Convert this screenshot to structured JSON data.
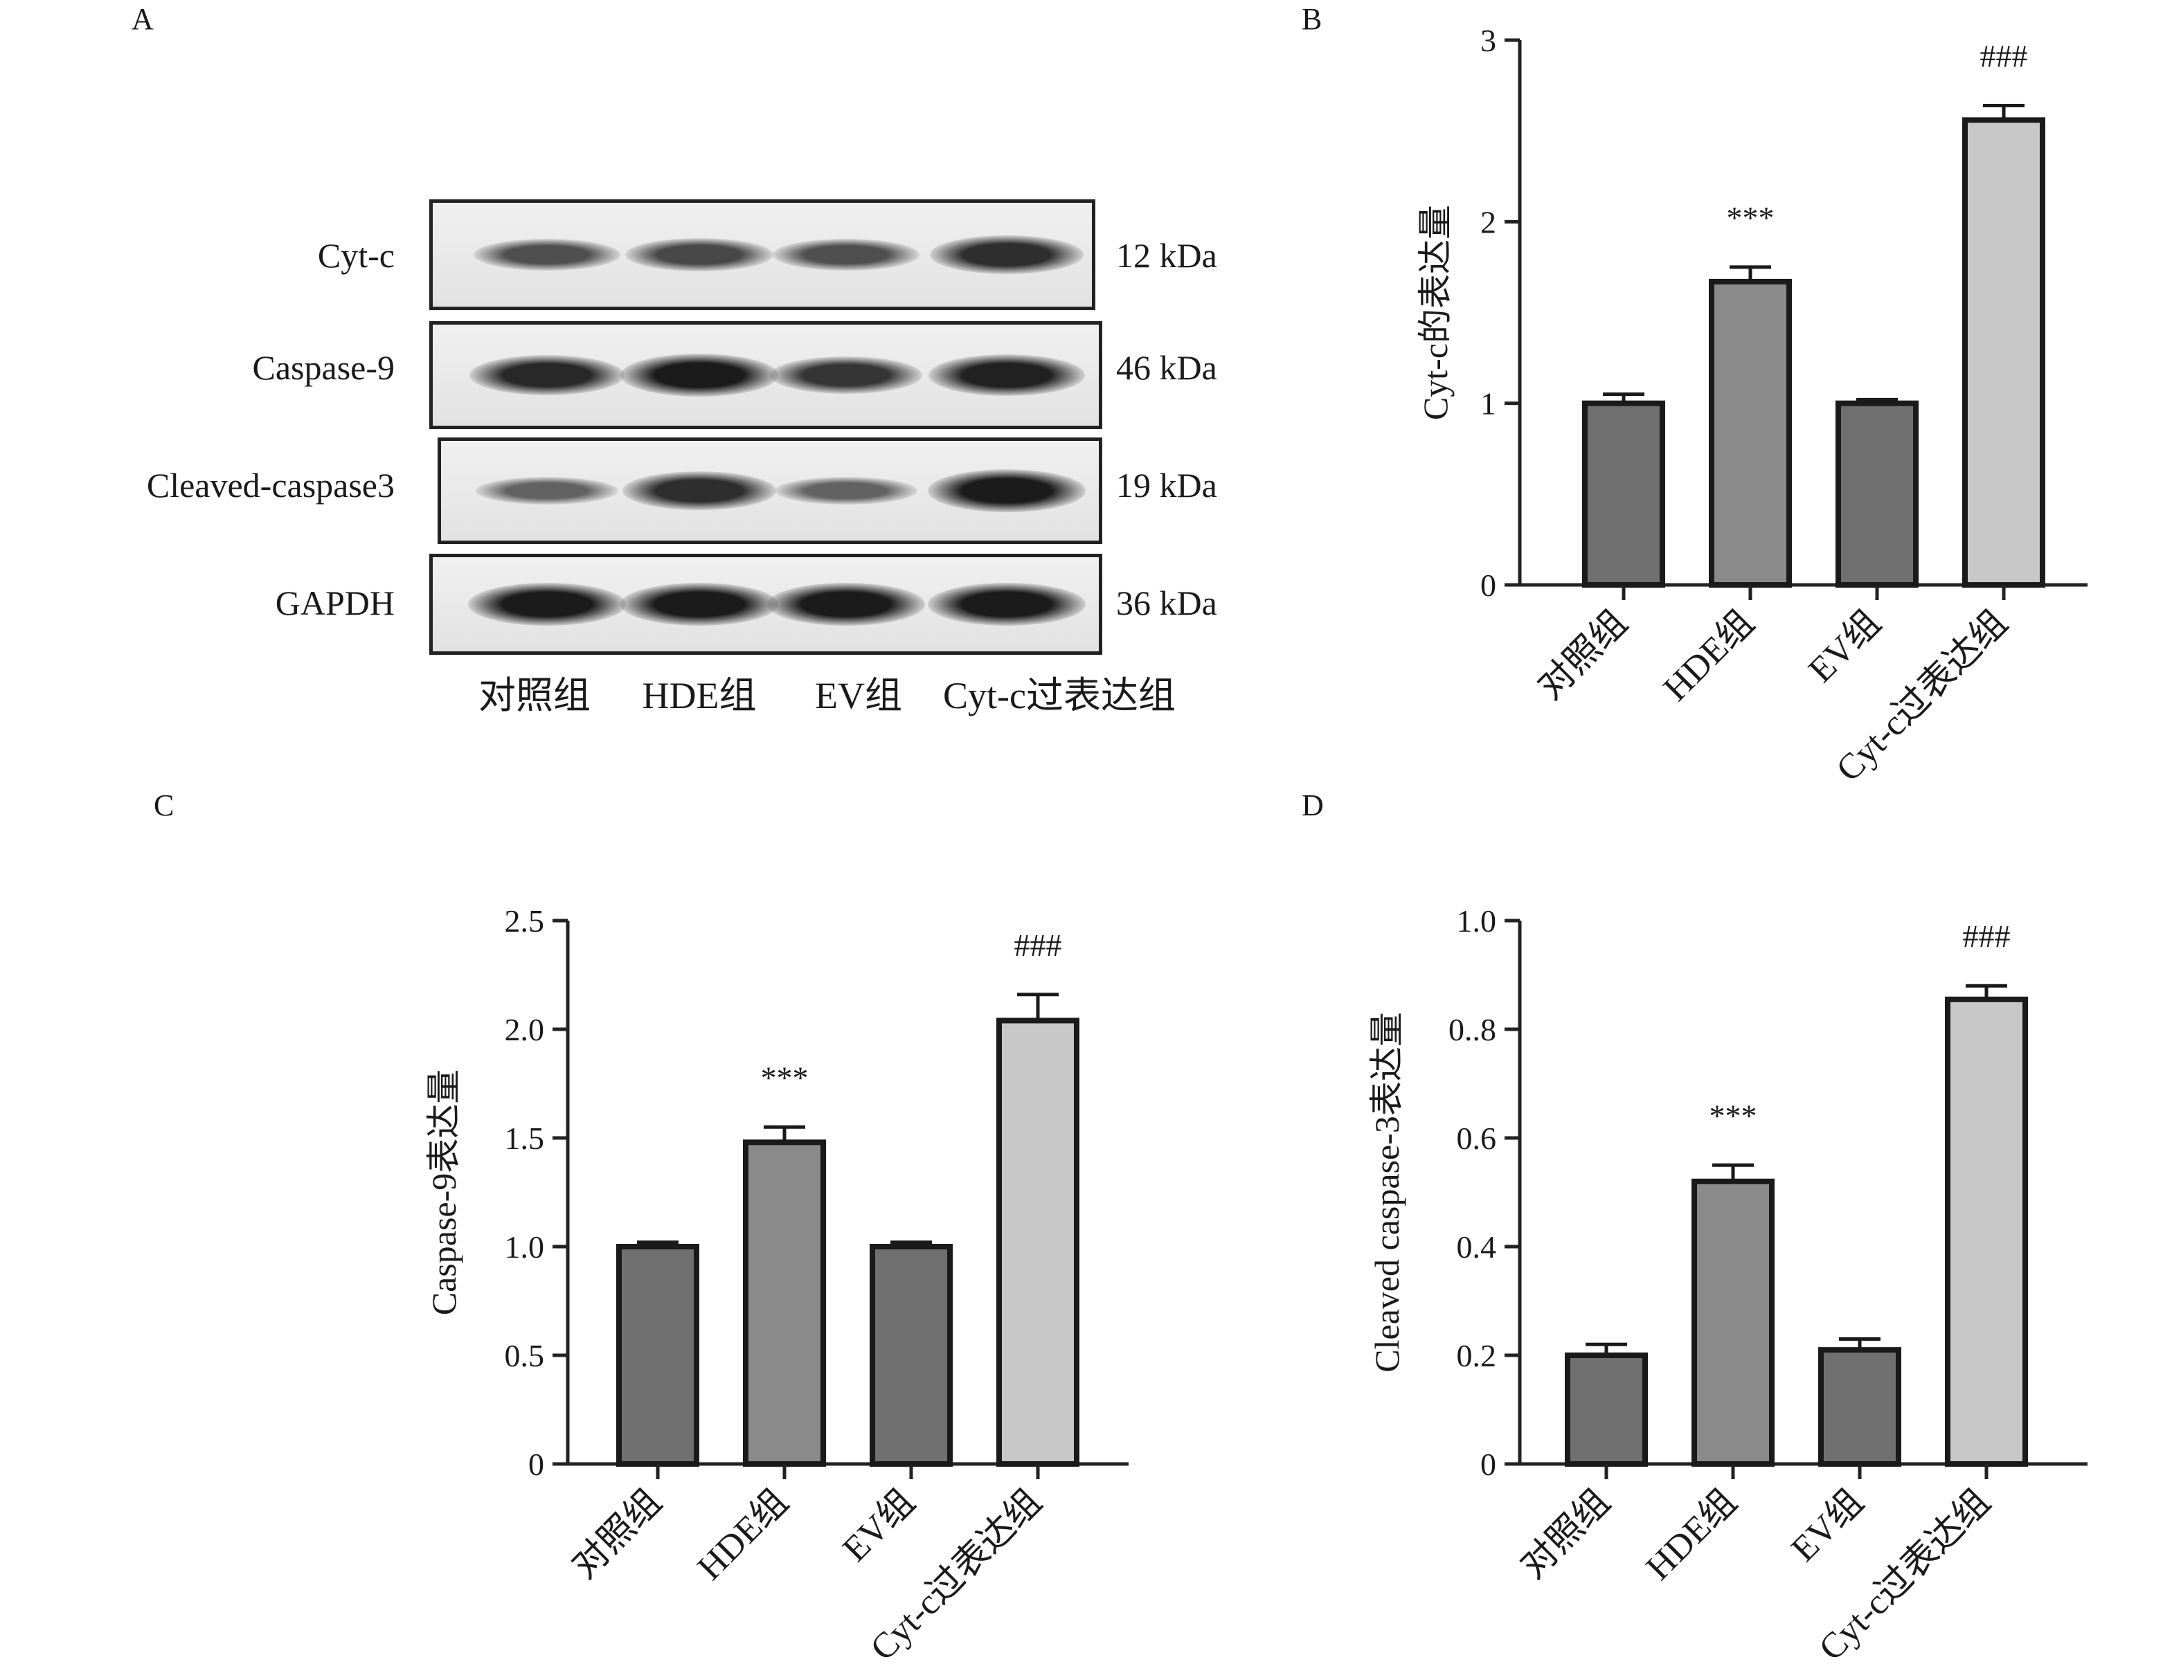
{
  "panel_letters": [
    "A",
    "B",
    "C",
    "D"
  ],
  "blot": {
    "proteins": [
      {
        "name": "Cyt-c",
        "kda": "12 kDa",
        "intensities": [
          0.55,
          0.6,
          0.55,
          0.8
        ]
      },
      {
        "name": "Caspase-9",
        "kda": "46 kDa",
        "intensities": [
          0.85,
          0.95,
          0.75,
          0.9
        ]
      },
      {
        "name": "Cleaved-caspase3",
        "kda": "19 kDa",
        "intensities": [
          0.4,
          0.8,
          0.4,
          0.95
        ]
      },
      {
        "name": "GAPDH",
        "kda": "36 kDa",
        "intensities": [
          0.95,
          0.95,
          0.95,
          0.95
        ]
      }
    ],
    "lanes": [
      "对照组",
      "HDE组",
      "EV组",
      "Cyt-c过表达组"
    ]
  },
  "chart_data": [
    {
      "panel": "B",
      "type": "bar",
      "categories": [
        "对照组",
        "HDE组",
        "EV组",
        "Cyt-c过表达组"
      ],
      "values": [
        1.0,
        1.67,
        1.0,
        2.56
      ],
      "errors": [
        0.05,
        0.08,
        0.02,
        0.08
      ],
      "annotations": [
        "",
        "***",
        "",
        "###"
      ],
      "colors": [
        "#707070",
        "#8a8a8a",
        "#707070",
        "#c8c8c8"
      ],
      "ylabel": "Cyt-c的表达量",
      "ylim": [
        0,
        3
      ],
      "yticks": [
        0,
        1,
        2,
        3
      ],
      "yticklabels": [
        "0",
        "1",
        "2",
        "3"
      ]
    },
    {
      "panel": "C",
      "type": "bar",
      "categories": [
        "对照组",
        "HDE组",
        "EV组",
        "Cyt-c过表达组"
      ],
      "values": [
        1.0,
        1.48,
        1.0,
        2.04
      ],
      "errors": [
        0.02,
        0.07,
        0.02,
        0.12
      ],
      "annotations": [
        "",
        "***",
        "",
        "###"
      ],
      "colors": [
        "#707070",
        "#8a8a8a",
        "#707070",
        "#c8c8c8"
      ],
      "ylabel": "Caspase-9表达量",
      "ylim": [
        0,
        2.5
      ],
      "yticks": [
        0,
        0.5,
        1.0,
        1.5,
        2.0,
        2.5
      ],
      "yticklabels": [
        "0",
        "0.5",
        "1.0",
        "1.5",
        "2.0",
        "2.5"
      ]
    },
    {
      "panel": "D",
      "type": "bar",
      "categories": [
        "对照组",
        "HDE组",
        "EV组",
        "Cyt-c过表达组"
      ],
      "values": [
        0.2,
        0.52,
        0.21,
        0.855
      ],
      "errors": [
        0.02,
        0.03,
        0.02,
        0.025
      ],
      "annotations": [
        "",
        "***",
        "",
        "###"
      ],
      "colors": [
        "#707070",
        "#8a8a8a",
        "#707070",
        "#c8c8c8"
      ],
      "ylabel": "Cleaved caspase-3表达量",
      "ylim": [
        0,
        1.0
      ],
      "yticks": [
        0,
        0.2,
        0.4,
        0.6,
        0.8,
        1.0
      ],
      "yticklabels": [
        "0",
        "0.2",
        "0.4",
        "0.6",
        "0..8",
        "1.0"
      ]
    }
  ]
}
